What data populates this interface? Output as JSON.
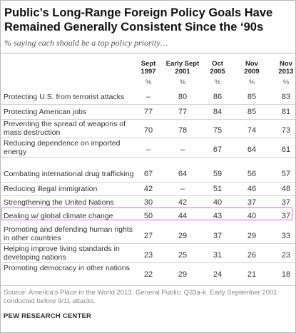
{
  "title_line1": "Public’s Long-Range  Foreign Policy Goals Have",
  "title_line2": "Remained Generally Consistent Since the ‘90s",
  "subtitle": "% saying each should be a top policy priority…",
  "columns": [
    {
      "line1": "Sept",
      "line2": "1997",
      "unit": "%"
    },
    {
      "line1": "Early Sept",
      "line2": "2001",
      "unit": "%"
    },
    {
      "line1": "Oct",
      "line2": "2005",
      "unit": "%"
    },
    {
      "line1": "Nov",
      "line2": "2009",
      "unit": "%"
    },
    {
      "line1": "Nov",
      "line2": "2013",
      "unit": "%"
    }
  ],
  "rows": [
    {
      "label": "Protecting U.S. from terrorist attacks",
      "values": [
        "–",
        "80",
        "86",
        "85",
        "83"
      ]
    },
    {
      "label": "Protecting American jobs",
      "values": [
        "77",
        "77",
        "84",
        "85",
        "81"
      ]
    },
    {
      "label": "Preventing the spread of weapons of mass destruction",
      "values": [
        "70",
        "78",
        "75",
        "74",
        "73"
      ]
    },
    {
      "label": "Reducing dependence on imported energy",
      "values": [
        "–",
        "–",
        "67",
        "64",
        "61"
      ]
    },
    {
      "label": "Combating international drug trafficking",
      "values": [
        "67",
        "64",
        "59",
        "56",
        "57"
      ]
    },
    {
      "label": "Reducing illegal immigration",
      "values": [
        "42",
        "–",
        "51",
        "46",
        "48"
      ]
    },
    {
      "label": "Strengthening the United Nations",
      "values": [
        "30",
        "42",
        "40",
        "37",
        "37"
      ]
    },
    {
      "label": "Dealing w/ global climate change",
      "values": [
        "50",
        "44",
        "43",
        "40",
        "37"
      ],
      "highlighted": true
    },
    {
      "label": "Promoting and defending human rights in other countries",
      "values": [
        "27",
        "29",
        "37",
        "29",
        "33"
      ]
    },
    {
      "label": "Helping improve living standards in developing nations",
      "values": [
        "23",
        "25",
        "31",
        "26",
        "23"
      ]
    },
    {
      "label": "Promoting democracy in other nations",
      "values": [
        "22",
        "29",
        "24",
        "21",
        "18"
      ]
    }
  ],
  "source": "Source: America’s Place in the World 2013. General Public: Q33a-k. Early September 2001 conducted before 9/11 attacks.",
  "brand": "PEW RESEARCH CENTER",
  "highlight_color": "#d070d8"
}
